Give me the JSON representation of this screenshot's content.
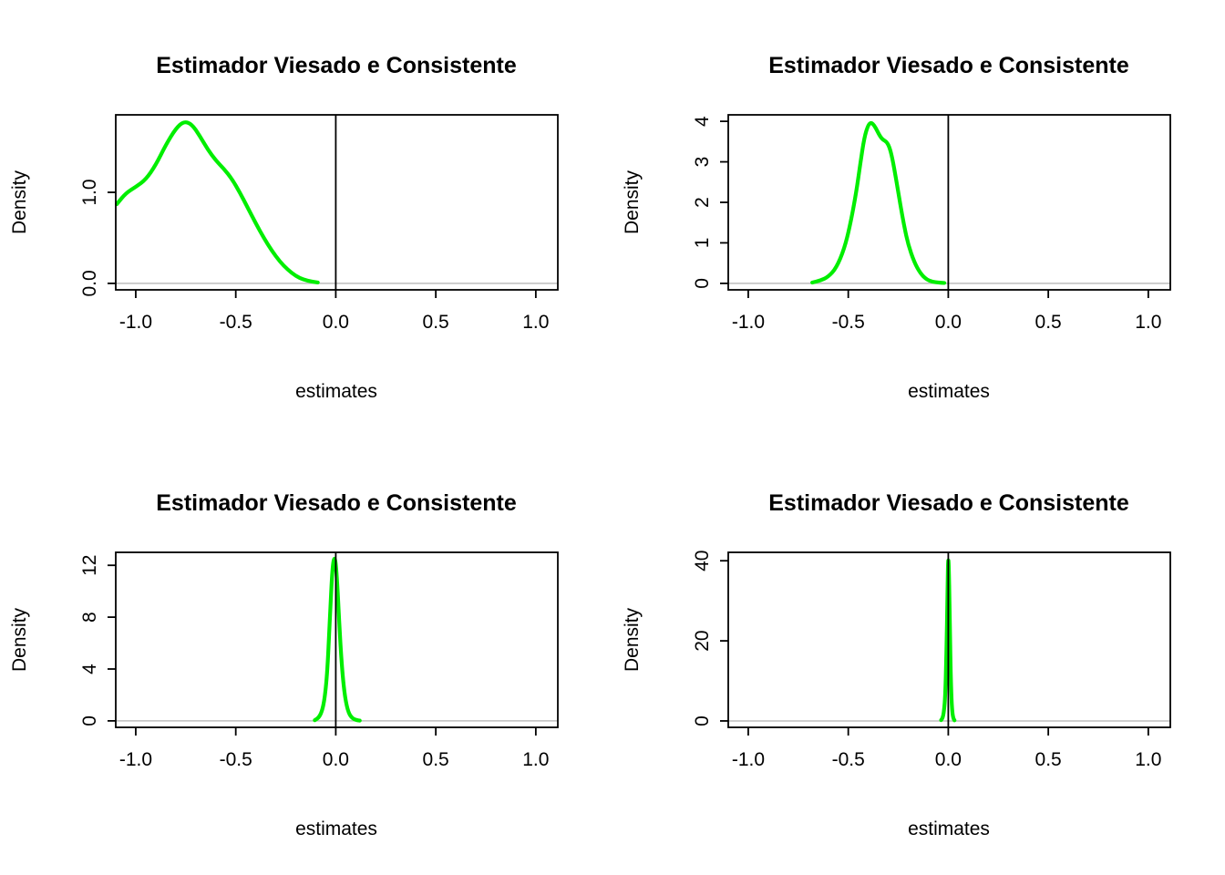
{
  "figure": {
    "background": "#ffffff",
    "layout": "2x2 grid of R base-graphics density plots"
  },
  "chart_data": [
    {
      "type": "line",
      "position": "top-left",
      "title": "Estimador Viesado e Consistente",
      "xlabel": "estimates",
      "ylabel": "Density",
      "curve_color": "#00ee00",
      "baseline_color": "#bebebe",
      "box_color": "#000000",
      "vline_x": 0,
      "xlim": [
        -1.1,
        1.11
      ],
      "ylim": [
        -0.071,
        1.851
      ],
      "xticks": {
        "values": [
          -1,
          -0.5,
          0,
          0.5,
          1
        ],
        "labels": [
          "-1.0",
          "-0.5",
          "0.0",
          "0.5",
          "1.0"
        ]
      },
      "yticks": {
        "values": [
          0,
          1
        ],
        "labels": [
          "0.0",
          "1.0"
        ]
      },
      "curve": {
        "x": [
          -1.095,
          -1.05,
          -1.0,
          -0.95,
          -0.9,
          -0.85,
          -0.8,
          -0.76,
          -0.72,
          -0.68,
          -0.64,
          -0.6,
          -0.56,
          -0.52,
          -0.48,
          -0.44,
          -0.4,
          -0.36,
          -0.32,
          -0.28,
          -0.24,
          -0.2,
          -0.16,
          -0.12,
          -0.09
        ],
        "y": [
          0.87,
          0.99,
          1.06,
          1.14,
          1.3,
          1.52,
          1.7,
          1.78,
          1.75,
          1.62,
          1.47,
          1.35,
          1.26,
          1.15,
          1.0,
          0.83,
          0.66,
          0.5,
          0.36,
          0.24,
          0.15,
          0.08,
          0.04,
          0.02,
          0.01
        ]
      }
    },
    {
      "type": "line",
      "position": "top-right",
      "title": "Estimador Viesado e Consistente",
      "xlabel": "estimates",
      "ylabel": "Density",
      "curve_color": "#00ee00",
      "baseline_color": "#bebebe",
      "box_color": "#000000",
      "vline_x": 0,
      "xlim": [
        -1.1,
        1.11
      ],
      "ylim": [
        -0.16,
        4.16
      ],
      "xticks": {
        "values": [
          -1,
          -0.5,
          0,
          0.5,
          1
        ],
        "labels": [
          "-1.0",
          "-0.5",
          "0.0",
          "0.5",
          "1.0"
        ]
      },
      "yticks": {
        "values": [
          0,
          1,
          2,
          3,
          4
        ],
        "labels": [
          "0",
          "1",
          "2",
          "3",
          "4"
        ]
      },
      "curve": {
        "x": [
          -0.68,
          -0.64,
          -0.6,
          -0.56,
          -0.52,
          -0.49,
          -0.46,
          -0.44,
          -0.42,
          -0.4,
          -0.385,
          -0.37,
          -0.355,
          -0.34,
          -0.325,
          -0.31,
          -0.295,
          -0.28,
          -0.26,
          -0.24,
          -0.22,
          -0.2,
          -0.17,
          -0.14,
          -0.11,
          -0.08,
          -0.05,
          -0.02
        ],
        "y": [
          0.02,
          0.07,
          0.16,
          0.38,
          0.85,
          1.45,
          2.25,
          2.95,
          3.6,
          3.92,
          3.97,
          3.9,
          3.76,
          3.62,
          3.54,
          3.5,
          3.38,
          3.1,
          2.55,
          1.95,
          1.4,
          0.95,
          0.52,
          0.25,
          0.1,
          0.04,
          0.02,
          0.01
        ]
      }
    },
    {
      "type": "line",
      "position": "bottom-left",
      "title": "Estimador Viesado e Consistente",
      "xlabel": "estimates",
      "ylabel": "Density",
      "curve_color": "#00ee00",
      "baseline_color": "#bebebe",
      "box_color": "#000000",
      "vline_x": 0,
      "xlim": [
        -1.1,
        1.11
      ],
      "ylim": [
        -0.5,
        13.0
      ],
      "xticks": {
        "values": [
          -1,
          -0.5,
          0,
          0.5,
          1
        ],
        "labels": [
          "-1.0",
          "-0.5",
          "0.0",
          "0.5",
          "1.0"
        ]
      },
      "yticks": {
        "values": [
          0,
          4,
          8,
          12
        ],
        "labels": [
          "0",
          "4",
          "8",
          "12"
        ]
      },
      "curve": {
        "x": [
          -0.105,
          -0.085,
          -0.07,
          -0.058,
          -0.048,
          -0.04,
          -0.033,
          -0.026,
          -0.02,
          -0.014,
          -0.008,
          -0.003,
          0.002,
          0.008,
          0.014,
          0.02,
          0.027,
          0.035,
          0.044,
          0.054,
          0.065,
          0.078,
          0.092,
          0.108,
          0.12
        ],
        "y": [
          0.05,
          0.25,
          0.7,
          1.5,
          2.8,
          4.5,
          6.8,
          9.0,
          10.9,
          12.1,
          12.55,
          12.45,
          11.8,
          10.4,
          8.6,
          6.8,
          5.0,
          3.4,
          2.1,
          1.2,
          0.6,
          0.28,
          0.12,
          0.05,
          0.02
        ]
      }
    },
    {
      "type": "line",
      "position": "bottom-right",
      "title": "Estimador Viesado e Consistente",
      "xlabel": "estimates",
      "ylabel": "Density",
      "curve_color": "#00ee00",
      "baseline_color": "#bebebe",
      "box_color": "#000000",
      "vline_x": 0,
      "xlim": [
        -1.1,
        1.11
      ],
      "ylim": [
        -1.6,
        42.1
      ],
      "xticks": {
        "values": [
          -1,
          -0.5,
          0,
          0.5,
          1
        ],
        "labels": [
          "-1.0",
          "-0.5",
          "0.0",
          "0.5",
          "1.0"
        ]
      },
      "yticks": {
        "values": [
          0,
          20,
          40
        ],
        "labels": [
          "0",
          "20",
          "40"
        ]
      },
      "curve": {
        "x": [
          -0.036,
          -0.03,
          -0.025,
          -0.021,
          -0.017,
          -0.014,
          -0.011,
          -0.008,
          -0.005,
          -0.003,
          -0.001,
          0.001,
          0.003,
          0.006,
          0.009,
          0.012,
          0.016,
          0.02,
          0.025,
          0.031
        ],
        "y": [
          0.2,
          0.6,
          1.4,
          2.8,
          5.0,
          8.5,
          13.5,
          20.5,
          28.5,
          35.0,
          39.8,
          40.3,
          37.5,
          30.0,
          20.5,
          12.0,
          5.5,
          2.2,
          0.7,
          0.15
        ]
      }
    }
  ]
}
